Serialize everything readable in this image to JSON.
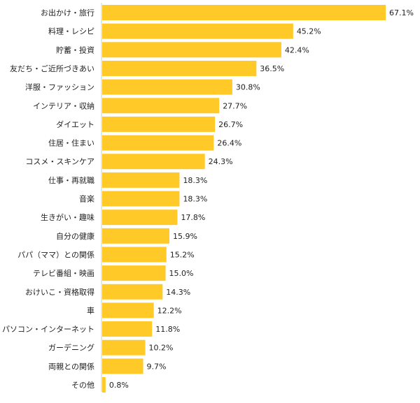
{
  "chart_data": {
    "type": "bar",
    "orientation": "horizontal",
    "title": "",
    "xlabel": "",
    "ylabel": "",
    "value_suffix": "%",
    "xlim": [
      0,
      67.1
    ],
    "grid": false,
    "bar_color": "#FFC928",
    "categories": [
      "お出かけ・旅行",
      "料理・レシピ",
      "貯蓄・投資",
      "友だち・ご近所づきあい",
      "洋服・ファッション",
      "インテリア・収納",
      "ダイエット",
      "住居・住まい",
      "コスメ・スキンケア",
      "仕事・再就職",
      "音楽",
      "生きがい・趣味",
      "自分の健康",
      "パパ（ママ）との関係",
      "テレビ番組・映画",
      "おけいこ・資格取得",
      "車",
      "パソコン・インターネット",
      "ガーデニング",
      "両親との関係",
      "その他"
    ],
    "values": [
      67.1,
      45.2,
      42.4,
      36.5,
      30.8,
      27.7,
      26.7,
      26.4,
      24.3,
      18.3,
      18.3,
      17.8,
      15.9,
      15.2,
      15.0,
      14.3,
      12.2,
      11.8,
      10.2,
      9.7,
      0.8
    ],
    "value_labels": [
      "67.1%",
      "45.2%",
      "42.4%",
      "36.5%",
      "30.8%",
      "27.7%",
      "26.7%",
      "26.4%",
      "24.3%",
      "18.3%",
      "18.3%",
      "17.8%",
      "15.9%",
      "15.2%",
      "15.0%",
      "14.3%",
      "12.2%",
      "11.8%",
      "10.2%",
      "9.7%",
      "0.8%"
    ]
  }
}
